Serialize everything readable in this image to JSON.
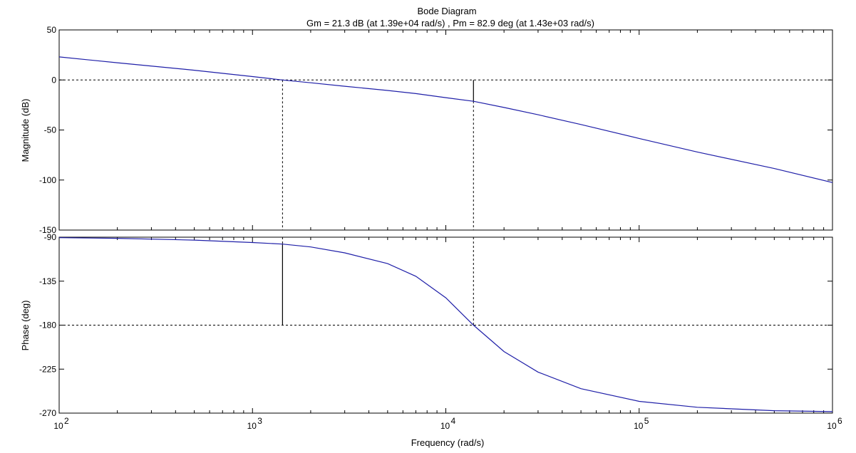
{
  "chart_data": {
    "type": "line",
    "title": "Bode Diagram",
    "subtitle": "Gm = 21.3 dB (at 1.39e+04 rad/s) ,  Pm = 82.9 deg (at 1.43e+03 rad/s)",
    "xlabel": "Frequency  (rad/s)",
    "x_scale": "log",
    "xlim": [
      100,
      1000000
    ],
    "x_ticks": [
      {
        "value": 100,
        "base": "10",
        "exp": "2"
      },
      {
        "value": 1000,
        "base": "10",
        "exp": "3"
      },
      {
        "value": 10000,
        "base": "10",
        "exp": "4"
      },
      {
        "value": 100000,
        "base": "10",
        "exp": "5"
      },
      {
        "value": 1000000,
        "base": "10",
        "exp": "6"
      }
    ],
    "line_color": "#1f1fa8",
    "margin_color": "#000000",
    "magnitude": {
      "ylabel": "Magnitude (dB)",
      "ylim": [
        -150,
        50
      ],
      "yticks": [
        50,
        0,
        -50,
        -100,
        -150
      ],
      "reference_level": 0,
      "x": [
        100,
        200,
        500,
        1000,
        1430,
        2000,
        3000,
        5000,
        7000,
        10000,
        13900,
        20000,
        30000,
        50000,
        100000,
        200000,
        500000,
        1000000
      ],
      "y": [
        23,
        17.2,
        9.7,
        3.4,
        0,
        -2.8,
        -6.3,
        -10.5,
        -13.6,
        -17.7,
        -21.3,
        -27.5,
        -34.8,
        -44.5,
        -58.5,
        -72,
        -88.5,
        -102.5
      ]
    },
    "phase": {
      "ylabel": "Phase (deg)",
      "ylim": [
        -270,
        -90
      ],
      "yticks": [
        -90,
        -135,
        -180,
        -225,
        -270
      ],
      "reference_level": -180,
      "x": [
        100,
        200,
        500,
        1000,
        1430,
        2000,
        3000,
        5000,
        7000,
        10000,
        13900,
        20000,
        30000,
        50000,
        100000,
        200000,
        500000,
        1000000
      ],
      "y": [
        -90.5,
        -91.2,
        -93,
        -95.5,
        -97.1,
        -100,
        -106,
        -117,
        -130,
        -152,
        -180,
        -207,
        -228,
        -245,
        -258,
        -264,
        -267.5,
        -268.5
      ]
    },
    "gain_margin": {
      "db": 21.3,
      "frequency": 13900
    },
    "phase_margin": {
      "deg": 82.9,
      "frequency": 1430
    }
  }
}
